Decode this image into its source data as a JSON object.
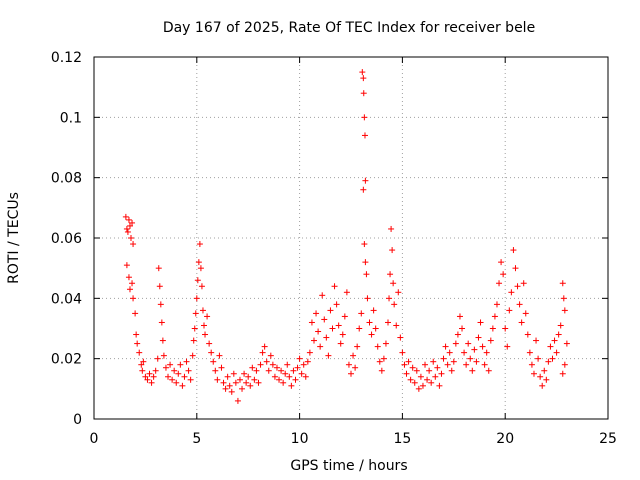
{
  "chart_data": {
    "type": "scatter",
    "title": "Day 167 of 2025, Rate Of TEC Index for receiver bele",
    "xlabel": "GPS time / hours",
    "ylabel": "ROTI / TECUs",
    "xlim": [
      0,
      25
    ],
    "ylim": [
      0,
      0.12
    ],
    "xticks": [
      0,
      5,
      10,
      15,
      20,
      25
    ],
    "xtick_labels": [
      "0",
      "5",
      "10",
      "15",
      "20",
      "25"
    ],
    "yticks": [
      0,
      0.02,
      0.04,
      0.06,
      0.08,
      0.1,
      0.12
    ],
    "ytick_labels": [
      "0",
      "0.02",
      "0.04",
      "0.06",
      "0.08",
      "0.1",
      "0.12"
    ],
    "grid": true,
    "marker": "plus",
    "color": "#ff0000",
    "series": [
      {
        "points": [
          [
            1.55,
            0.067
          ],
          [
            1.6,
            0.063
          ],
          [
            1.65,
            0.062
          ],
          [
            1.7,
            0.066
          ],
          [
            1.75,
            0.064
          ],
          [
            1.8,
            0.06
          ],
          [
            1.85,
            0.065
          ],
          [
            1.9,
            0.058
          ],
          [
            1.6,
            0.051
          ],
          [
            1.7,
            0.047
          ],
          [
            1.75,
            0.043
          ],
          [
            1.85,
            0.045
          ],
          [
            1.9,
            0.04
          ],
          [
            2.0,
            0.035
          ],
          [
            2.05,
            0.028
          ],
          [
            2.1,
            0.025
          ],
          [
            2.2,
            0.022
          ],
          [
            2.3,
            0.018
          ],
          [
            2.35,
            0.016
          ],
          [
            2.4,
            0.019
          ],
          [
            2.5,
            0.014
          ],
          [
            2.6,
            0.013
          ],
          [
            2.7,
            0.015
          ],
          [
            2.8,
            0.012
          ],
          [
            2.9,
            0.014
          ],
          [
            3.0,
            0.016
          ],
          [
            3.1,
            0.02
          ],
          [
            3.15,
            0.05
          ],
          [
            3.2,
            0.044
          ],
          [
            3.25,
            0.038
          ],
          [
            3.3,
            0.032
          ],
          [
            3.35,
            0.026
          ],
          [
            3.4,
            0.021
          ],
          [
            3.5,
            0.017
          ],
          [
            3.6,
            0.014
          ],
          [
            3.7,
            0.018
          ],
          [
            3.8,
            0.013
          ],
          [
            3.9,
            0.016
          ],
          [
            4.0,
            0.012
          ],
          [
            4.1,
            0.015
          ],
          [
            4.2,
            0.018
          ],
          [
            4.3,
            0.011
          ],
          [
            4.4,
            0.014
          ],
          [
            4.5,
            0.019
          ],
          [
            4.6,
            0.016
          ],
          [
            4.7,
            0.013
          ],
          [
            4.8,
            0.021
          ],
          [
            4.85,
            0.026
          ],
          [
            4.9,
            0.03
          ],
          [
            4.95,
            0.035
          ],
          [
            5.0,
            0.04
          ],
          [
            5.05,
            0.046
          ],
          [
            5.1,
            0.052
          ],
          [
            5.15,
            0.058
          ],
          [
            5.2,
            0.05
          ],
          [
            5.25,
            0.044
          ],
          [
            5.3,
            0.036
          ],
          [
            5.35,
            0.031
          ],
          [
            5.4,
            0.028
          ],
          [
            5.5,
            0.034
          ],
          [
            5.6,
            0.025
          ],
          [
            5.7,
            0.022
          ],
          [
            5.8,
            0.019
          ],
          [
            5.9,
            0.016
          ],
          [
            6.0,
            0.013
          ],
          [
            6.1,
            0.021
          ],
          [
            6.2,
            0.017
          ],
          [
            6.3,
            0.012
          ],
          [
            6.4,
            0.01
          ],
          [
            6.5,
            0.014
          ],
          [
            6.6,
            0.011
          ],
          [
            6.7,
            0.009
          ],
          [
            6.8,
            0.015
          ],
          [
            6.9,
            0.012
          ],
          [
            7.0,
            0.006
          ],
          [
            7.1,
            0.013
          ],
          [
            7.2,
            0.01
          ],
          [
            7.3,
            0.015
          ],
          [
            7.4,
            0.012
          ],
          [
            7.5,
            0.014
          ],
          [
            7.6,
            0.011
          ],
          [
            7.7,
            0.017
          ],
          [
            7.8,
            0.013
          ],
          [
            7.9,
            0.016
          ],
          [
            8.0,
            0.012
          ],
          [
            8.1,
            0.018
          ],
          [
            8.2,
            0.022
          ],
          [
            8.3,
            0.024
          ],
          [
            8.4,
            0.019
          ],
          [
            8.5,
            0.016
          ],
          [
            8.6,
            0.021
          ],
          [
            8.7,
            0.018
          ],
          [
            8.8,
            0.014
          ],
          [
            8.9,
            0.017
          ],
          [
            9.0,
            0.013
          ],
          [
            9.1,
            0.016
          ],
          [
            9.2,
            0.012
          ],
          [
            9.3,
            0.015
          ],
          [
            9.4,
            0.018
          ],
          [
            9.5,
            0.014
          ],
          [
            9.6,
            0.011
          ],
          [
            9.7,
            0.016
          ],
          [
            9.8,
            0.013
          ],
          [
            9.9,
            0.017
          ],
          [
            10.0,
            0.02
          ],
          [
            10.1,
            0.015
          ],
          [
            10.2,
            0.018
          ],
          [
            10.3,
            0.014
          ],
          [
            10.4,
            0.019
          ],
          [
            10.5,
            0.022
          ],
          [
            10.6,
            0.032
          ],
          [
            10.7,
            0.026
          ],
          [
            10.8,
            0.035
          ],
          [
            10.9,
            0.029
          ],
          [
            11.0,
            0.024
          ],
          [
            11.1,
            0.041
          ],
          [
            11.2,
            0.033
          ],
          [
            11.3,
            0.027
          ],
          [
            11.4,
            0.021
          ],
          [
            11.5,
            0.036
          ],
          [
            11.6,
            0.03
          ],
          [
            11.7,
            0.044
          ],
          [
            11.8,
            0.038
          ],
          [
            11.9,
            0.031
          ],
          [
            12.0,
            0.025
          ],
          [
            12.1,
            0.028
          ],
          [
            12.2,
            0.034
          ],
          [
            12.3,
            0.042
          ],
          [
            12.4,
            0.018
          ],
          [
            12.5,
            0.015
          ],
          [
            12.6,
            0.021
          ],
          [
            12.7,
            0.017
          ],
          [
            12.8,
            0.024
          ],
          [
            12.9,
            0.03
          ],
          [
            13.0,
            0.035
          ],
          [
            13.05,
            0.115
          ],
          [
            13.1,
            0.113
          ],
          [
            13.12,
            0.108
          ],
          [
            13.15,
            0.1
          ],
          [
            13.18,
            0.094
          ],
          [
            13.2,
            0.079
          ],
          [
            13.1,
            0.076
          ],
          [
            13.15,
            0.058
          ],
          [
            13.2,
            0.052
          ],
          [
            13.25,
            0.048
          ],
          [
            13.3,
            0.04
          ],
          [
            13.4,
            0.032
          ],
          [
            13.5,
            0.028
          ],
          [
            13.6,
            0.036
          ],
          [
            13.7,
            0.03
          ],
          [
            13.8,
            0.024
          ],
          [
            13.9,
            0.019
          ],
          [
            14.0,
            0.016
          ],
          [
            14.1,
            0.02
          ],
          [
            14.2,
            0.025
          ],
          [
            14.3,
            0.032
          ],
          [
            14.35,
            0.04
          ],
          [
            14.4,
            0.048
          ],
          [
            14.45,
            0.063
          ],
          [
            14.5,
            0.056
          ],
          [
            14.55,
            0.045
          ],
          [
            14.6,
            0.038
          ],
          [
            14.7,
            0.031
          ],
          [
            14.8,
            0.042
          ],
          [
            14.9,
            0.027
          ],
          [
            15.0,
            0.022
          ],
          [
            15.1,
            0.018
          ],
          [
            15.2,
            0.015
          ],
          [
            15.3,
            0.019
          ],
          [
            15.4,
            0.013
          ],
          [
            15.5,
            0.017
          ],
          [
            15.6,
            0.012
          ],
          [
            15.7,
            0.016
          ],
          [
            15.8,
            0.01
          ],
          [
            15.9,
            0.014
          ],
          [
            16.0,
            0.011
          ],
          [
            16.1,
            0.018
          ],
          [
            16.2,
            0.013
          ],
          [
            16.3,
            0.016
          ],
          [
            16.4,
            0.012
          ],
          [
            16.5,
            0.019
          ],
          [
            16.6,
            0.014
          ],
          [
            16.7,
            0.017
          ],
          [
            16.8,
            0.011
          ],
          [
            16.9,
            0.015
          ],
          [
            17.0,
            0.02
          ],
          [
            17.1,
            0.024
          ],
          [
            17.2,
            0.018
          ],
          [
            17.3,
            0.022
          ],
          [
            17.4,
            0.016
          ],
          [
            17.5,
            0.019
          ],
          [
            17.6,
            0.025
          ],
          [
            17.7,
            0.028
          ],
          [
            17.8,
            0.034
          ],
          [
            17.9,
            0.03
          ],
          [
            18.0,
            0.022
          ],
          [
            18.1,
            0.018
          ],
          [
            18.2,
            0.025
          ],
          [
            18.3,
            0.02
          ],
          [
            18.4,
            0.016
          ],
          [
            18.5,
            0.023
          ],
          [
            18.6,
            0.019
          ],
          [
            18.7,
            0.027
          ],
          [
            18.8,
            0.032
          ],
          [
            18.9,
            0.024
          ],
          [
            19.0,
            0.018
          ],
          [
            19.1,
            0.022
          ],
          [
            19.2,
            0.016
          ],
          [
            19.3,
            0.026
          ],
          [
            19.4,
            0.03
          ],
          [
            19.5,
            0.034
          ],
          [
            19.6,
            0.038
          ],
          [
            19.7,
            0.045
          ],
          [
            19.8,
            0.052
          ],
          [
            19.9,
            0.048
          ],
          [
            20.0,
            0.03
          ],
          [
            20.1,
            0.024
          ],
          [
            20.2,
            0.036
          ],
          [
            20.3,
            0.042
          ],
          [
            20.4,
            0.056
          ],
          [
            20.5,
            0.05
          ],
          [
            20.6,
            0.044
          ],
          [
            20.7,
            0.038
          ],
          [
            20.8,
            0.032
          ],
          [
            20.9,
            0.045
          ],
          [
            21.0,
            0.035
          ],
          [
            21.1,
            0.028
          ],
          [
            21.2,
            0.022
          ],
          [
            21.3,
            0.018
          ],
          [
            21.4,
            0.015
          ],
          [
            21.5,
            0.026
          ],
          [
            21.6,
            0.02
          ],
          [
            21.7,
            0.014
          ],
          [
            21.8,
            0.011
          ],
          [
            21.9,
            0.016
          ],
          [
            22.0,
            0.013
          ],
          [
            22.1,
            0.019
          ],
          [
            22.2,
            0.024
          ],
          [
            22.3,
            0.02
          ],
          [
            22.4,
            0.026
          ],
          [
            22.5,
            0.022
          ],
          [
            22.6,
            0.028
          ],
          [
            22.7,
            0.031
          ],
          [
            22.8,
            0.045
          ],
          [
            22.85,
            0.04
          ],
          [
            22.9,
            0.036
          ],
          [
            23.0,
            0.025
          ],
          [
            22.9,
            0.018
          ],
          [
            22.8,
            0.015
          ]
        ]
      }
    ]
  }
}
